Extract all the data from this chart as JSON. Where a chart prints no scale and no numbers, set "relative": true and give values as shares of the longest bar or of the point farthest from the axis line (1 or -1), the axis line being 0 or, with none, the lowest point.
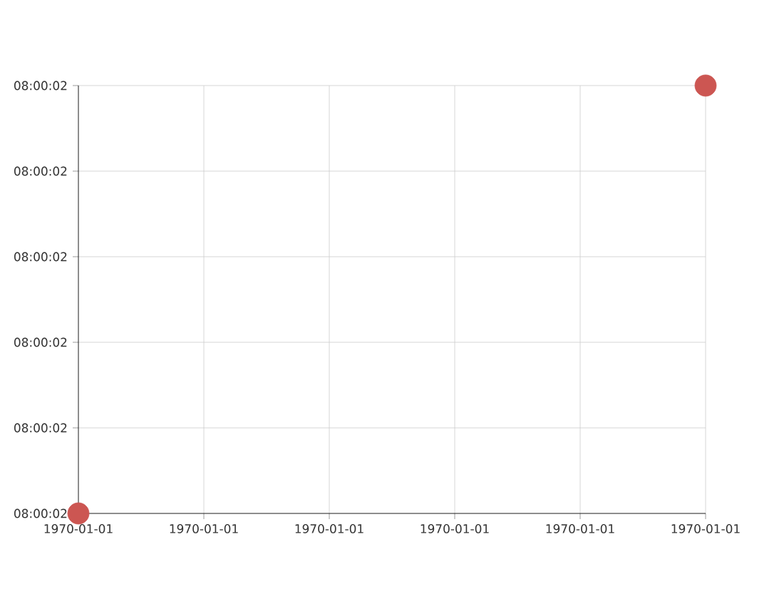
{
  "chart_data": {
    "type": "scatter",
    "relative": true,
    "categories": [
      "1970-01-01",
      "1970-01-01",
      "1970-01-01",
      "1970-01-01",
      "1970-01-01",
      "1970-01-01"
    ],
    "series": [
      {
        "color": "#cc5652",
        "values": [
          0,
          null,
          null,
          null,
          null,
          1
        ]
      }
    ],
    "annotations": [
      "08:00:02",
      "08:00:02",
      "08:00:02",
      "08:00:02",
      "08:00:02",
      "08:00:02"
    ],
    "grid": true
  }
}
